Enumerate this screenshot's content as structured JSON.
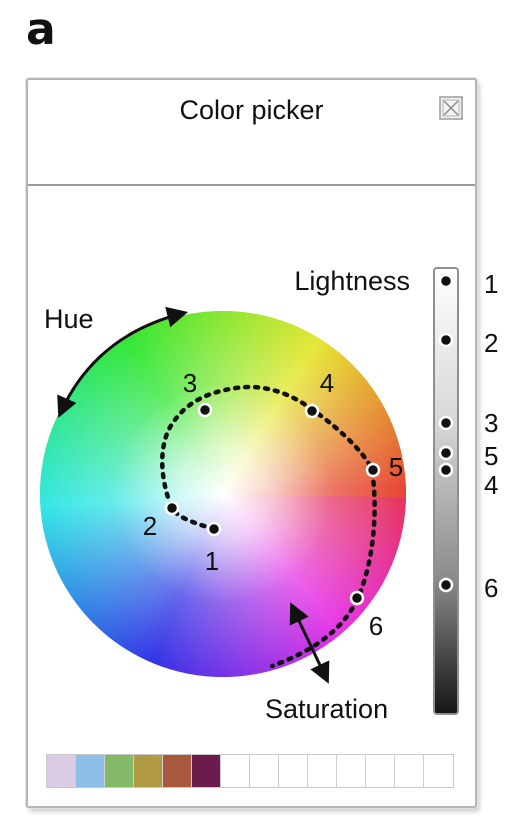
{
  "panel_label": "a",
  "window": {
    "title": "Color picker",
    "close_icon": "close-box-icon"
  },
  "wheel_labels": {
    "hue": "Hue",
    "saturation": "Saturation",
    "lightness": "Lightness"
  },
  "path_points": [
    {
      "label": "1"
    },
    {
      "label": "2"
    },
    {
      "label": "3"
    },
    {
      "label": "4"
    },
    {
      "label": "5"
    },
    {
      "label": "6"
    }
  ],
  "lightness_points": [
    {
      "label": "1"
    },
    {
      "label": "2"
    },
    {
      "label": "3"
    },
    {
      "label": "5"
    },
    {
      "label": "4"
    },
    {
      "label": "6"
    }
  ],
  "swatches": [
    {
      "color": "#dccbe4"
    },
    {
      "color": "#8dbfe6"
    },
    {
      "color": "#85b96a"
    },
    {
      "color": "#b09a44"
    },
    {
      "color": "#a8583c"
    },
    {
      "color": "#6b1b4c"
    },
    {
      "color": "#ffffff"
    },
    {
      "color": "#ffffff"
    },
    {
      "color": "#ffffff"
    },
    {
      "color": "#ffffff"
    },
    {
      "color": "#ffffff"
    },
    {
      "color": "#ffffff"
    },
    {
      "color": "#ffffff"
    },
    {
      "color": "#ffffff"
    }
  ]
}
